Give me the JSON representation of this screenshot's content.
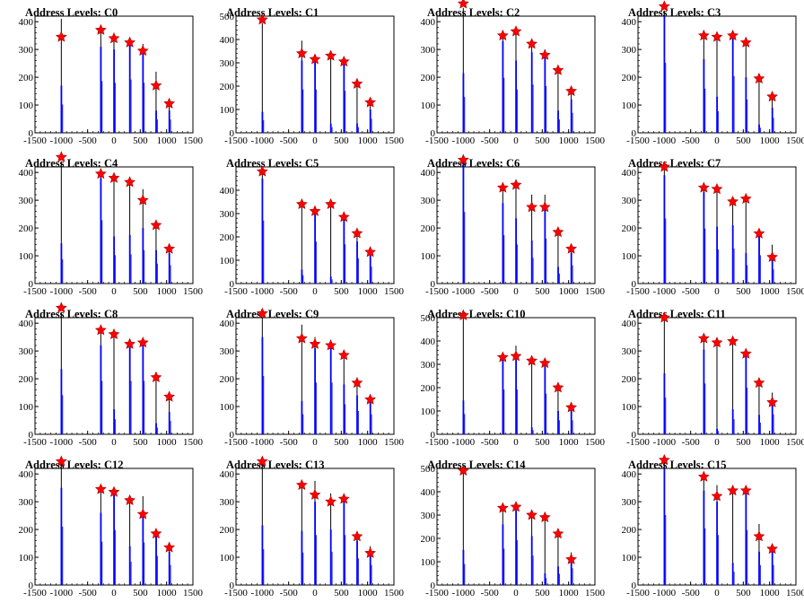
{
  "figure": {
    "background": "#ffffff",
    "bar_color": "#0000ff",
    "outline_color": "#000000",
    "marker_fill": "#ff0000",
    "marker_stroke": "#aa0000"
  },
  "chart_data": [
    {
      "type": "bar",
      "title": "Address Levels: C0",
      "xlim": [
        -1500,
        1500
      ],
      "ylim": [
        0,
        420
      ],
      "yticks": [
        0,
        100,
        200,
        300,
        400
      ],
      "xticks": [
        -1500,
        -1000,
        -500,
        0,
        500,
        1000,
        1500
      ],
      "peaks": [
        {
          "x": -1000,
          "bar": 410,
          "blue": 170,
          "marker": 345
        },
        {
          "x": -250,
          "bar": 360,
          "blue": 310,
          "marker": 370
        },
        {
          "x": 0,
          "bar": 360,
          "blue": 300,
          "marker": 340
        },
        {
          "x": 300,
          "bar": 340,
          "blue": 320,
          "marker": 325
        },
        {
          "x": 550,
          "bar": 320,
          "blue": 300,
          "marker": 295
        },
        {
          "x": 800,
          "bar": 220,
          "blue": 80,
          "marker": 170
        },
        {
          "x": 1050,
          "bar": 120,
          "blue": 80,
          "marker": 105
        }
      ]
    },
    {
      "type": "bar",
      "title": "Address Levels: C1",
      "xlim": [
        -1500,
        1500
      ],
      "ylim": [
        0,
        500
      ],
      "yticks": [
        0,
        100,
        200,
        300,
        400,
        500
      ],
      "xticks": [
        -1500,
        -1000,
        -500,
        0,
        500,
        1000,
        1500
      ],
      "peaks": [
        {
          "x": -1000,
          "bar": 470,
          "blue": 90,
          "marker": 485
        },
        {
          "x": -250,
          "bar": 395,
          "blue": 310,
          "marker": 340
        },
        {
          "x": 0,
          "bar": 335,
          "blue": 310,
          "marker": 315
        },
        {
          "x": 300,
          "bar": 340,
          "blue": 40,
          "marker": 330
        },
        {
          "x": 550,
          "bar": 310,
          "blue": 300,
          "marker": 305
        },
        {
          "x": 800,
          "bar": 205,
          "blue": 40,
          "marker": 210
        },
        {
          "x": 1050,
          "bar": 140,
          "blue": 100,
          "marker": 130
        }
      ]
    },
    {
      "type": "bar",
      "title": "Address Levels: C2",
      "xlim": [
        -1500,
        1500
      ],
      "ylim": [
        0,
        420
      ],
      "yticks": [
        0,
        100,
        200,
        300,
        400
      ],
      "xticks": [
        -1500,
        -1000,
        -500,
        0,
        500,
        1000,
        1500
      ],
      "peaks": [
        {
          "x": -1000,
          "bar": 450,
          "blue": 215,
          "marker": 465
        },
        {
          "x": -250,
          "bar": 355,
          "blue": 330,
          "marker": 350
        },
        {
          "x": 0,
          "bar": 360,
          "blue": 260,
          "marker": 365
        },
        {
          "x": 300,
          "bar": 320,
          "blue": 290,
          "marker": 320
        },
        {
          "x": 550,
          "bar": 300,
          "blue": 280,
          "marker": 280
        },
        {
          "x": 800,
          "bar": 220,
          "blue": 80,
          "marker": 225
        },
        {
          "x": 1050,
          "bar": 150,
          "blue": 120,
          "marker": 150
        }
      ]
    },
    {
      "type": "bar",
      "title": "Address Levels: C3",
      "xlim": [
        -1500,
        1500
      ],
      "ylim": [
        0,
        420
      ],
      "yticks": [
        0,
        100,
        200,
        300,
        400
      ],
      "xticks": [
        -1500,
        -1000,
        -500,
        0,
        500,
        1000,
        1500
      ],
      "peaks": [
        {
          "x": -1000,
          "bar": 440,
          "blue": 420,
          "marker": 455
        },
        {
          "x": -250,
          "bar": 350,
          "blue": 265,
          "marker": 350
        },
        {
          "x": 0,
          "bar": 360,
          "blue": 130,
          "marker": 345
        },
        {
          "x": 300,
          "bar": 350,
          "blue": 340,
          "marker": 350
        },
        {
          "x": 550,
          "bar": 320,
          "blue": 200,
          "marker": 325
        },
        {
          "x": 800,
          "bar": 210,
          "blue": 30,
          "marker": 195
        },
        {
          "x": 1050,
          "bar": 140,
          "blue": 90,
          "marker": 130
        }
      ]
    },
    {
      "type": "bar",
      "title": "Address Levels: C4",
      "xlim": [
        -1500,
        1500
      ],
      "ylim": [
        0,
        420
      ],
      "yticks": [
        0,
        100,
        200,
        300,
        400
      ],
      "xticks": [
        -1500,
        -1000,
        -500,
        0,
        500,
        1000,
        1500
      ],
      "peaks": [
        {
          "x": -1000,
          "bar": 440,
          "blue": 145,
          "marker": 455
        },
        {
          "x": -250,
          "bar": 390,
          "blue": 380,
          "marker": 395
        },
        {
          "x": 0,
          "bar": 385,
          "blue": 170,
          "marker": 380
        },
        {
          "x": 300,
          "bar": 370,
          "blue": 175,
          "marker": 365
        },
        {
          "x": 550,
          "bar": 340,
          "blue": 200,
          "marker": 300
        },
        {
          "x": 800,
          "bar": 220,
          "blue": 120,
          "marker": 210
        },
        {
          "x": 1050,
          "bar": 140,
          "blue": 110,
          "marker": 125
        }
      ]
    },
    {
      "type": "bar",
      "title": "Address Levels: C5",
      "xlim": [
        -1500,
        1500
      ],
      "ylim": [
        0,
        500
      ],
      "yticks": [
        0,
        100,
        200,
        300,
        400
      ],
      "xticks": [
        -1500,
        -1000,
        -500,
        0,
        500,
        1000,
        1500
      ],
      "peaks": [
        {
          "x": -1000,
          "bar": 470,
          "blue": 450,
          "marker": 480
        },
        {
          "x": -250,
          "bar": 340,
          "blue": 60,
          "marker": 340
        },
        {
          "x": 0,
          "bar": 320,
          "blue": 300,
          "marker": 310
        },
        {
          "x": 300,
          "bar": 350,
          "blue": 30,
          "marker": 340
        },
        {
          "x": 550,
          "bar": 300,
          "blue": 280,
          "marker": 285
        },
        {
          "x": 800,
          "bar": 220,
          "blue": 180,
          "marker": 215
        },
        {
          "x": 1050,
          "bar": 145,
          "blue": 120,
          "marker": 135
        }
      ]
    },
    {
      "type": "bar",
      "title": "Address Levels: C6",
      "xlim": [
        -1500,
        1500
      ],
      "ylim": [
        0,
        420
      ],
      "yticks": [
        0,
        100,
        200,
        300,
        400
      ],
      "xticks": [
        -1500,
        -1000,
        -500,
        0,
        500,
        1000,
        1500
      ],
      "peaks": [
        {
          "x": -1000,
          "bar": 440,
          "blue": 430,
          "marker": 445
        },
        {
          "x": -250,
          "bar": 340,
          "blue": 290,
          "marker": 345
        },
        {
          "x": 0,
          "bar": 355,
          "blue": 235,
          "marker": 355
        },
        {
          "x": 300,
          "bar": 320,
          "blue": 155,
          "marker": 275
        },
        {
          "x": 550,
          "bar": 320,
          "blue": 270,
          "marker": 275
        },
        {
          "x": 800,
          "bar": 200,
          "blue": 60,
          "marker": 185
        },
        {
          "x": 1050,
          "bar": 140,
          "blue": 110,
          "marker": 125
        }
      ]
    },
    {
      "type": "bar",
      "title": "Address Levels: C7",
      "xlim": [
        -1500,
        1500
      ],
      "ylim": [
        0,
        420
      ],
      "yticks": [
        0,
        100,
        200,
        300,
        400
      ],
      "xticks": [
        -1500,
        -1000,
        -500,
        0,
        500,
        1000,
        1500
      ],
      "peaks": [
        {
          "x": -1000,
          "bar": 410,
          "blue": 390,
          "marker": 420
        },
        {
          "x": -250,
          "bar": 345,
          "blue": 330,
          "marker": 345
        },
        {
          "x": 0,
          "bar": 345,
          "blue": 205,
          "marker": 340
        },
        {
          "x": 300,
          "bar": 300,
          "blue": 210,
          "marker": 295
        },
        {
          "x": 550,
          "bar": 310,
          "blue": 110,
          "marker": 305
        },
        {
          "x": 800,
          "bar": 185,
          "blue": 170,
          "marker": 180
        },
        {
          "x": 1050,
          "bar": 140,
          "blue": 85,
          "marker": 95
        }
      ]
    },
    {
      "type": "bar",
      "title": "Address Levels: C8",
      "xlim": [
        -1500,
        1500
      ],
      "ylim": [
        0,
        420
      ],
      "yticks": [
        0,
        100,
        200,
        300,
        400
      ],
      "xticks": [
        -1500,
        -1000,
        -500,
        0,
        500,
        1000,
        1500
      ],
      "peaks": [
        {
          "x": -1000,
          "bar": 440,
          "blue": 235,
          "marker": 455
        },
        {
          "x": -250,
          "bar": 380,
          "blue": 320,
          "marker": 375
        },
        {
          "x": 0,
          "bar": 360,
          "blue": 90,
          "marker": 360
        },
        {
          "x": 300,
          "bar": 330,
          "blue": 320,
          "marker": 325
        },
        {
          "x": 550,
          "bar": 335,
          "blue": 320,
          "marker": 330
        },
        {
          "x": 800,
          "bar": 210,
          "blue": 40,
          "marker": 205
        },
        {
          "x": 1050,
          "bar": 140,
          "blue": 80,
          "marker": 135
        }
      ]
    },
    {
      "type": "bar",
      "title": "Address Levels: C9",
      "xlim": [
        -1500,
        1500
      ],
      "ylim": [
        0,
        420
      ],
      "yticks": [
        0,
        100,
        200,
        300,
        400
      ],
      "xticks": [
        -1500,
        -1000,
        -500,
        0,
        500,
        1000,
        1500
      ],
      "peaks": [
        {
          "x": -1000,
          "bar": 420,
          "blue": 350,
          "marker": 435
        },
        {
          "x": -250,
          "bar": 395,
          "blue": 120,
          "marker": 345
        },
        {
          "x": 0,
          "bar": 350,
          "blue": 310,
          "marker": 325
        },
        {
          "x": 300,
          "bar": 340,
          "blue": 310,
          "marker": 320
        },
        {
          "x": 550,
          "bar": 300,
          "blue": 180,
          "marker": 285
        },
        {
          "x": 800,
          "bar": 200,
          "blue": 140,
          "marker": 185
        },
        {
          "x": 1050,
          "bar": 140,
          "blue": 120,
          "marker": 125
        }
      ]
    },
    {
      "type": "bar",
      "title": "Address Levels: C10",
      "xlim": [
        -1500,
        1500
      ],
      "ylim": [
        0,
        500
      ],
      "yticks": [
        0,
        100,
        200,
        300,
        400,
        500
      ],
      "xticks": [
        -1500,
        -1000,
        -500,
        0,
        500,
        1000,
        1500
      ],
      "peaks": [
        {
          "x": -1000,
          "bar": 510,
          "blue": 145,
          "marker": 510
        },
        {
          "x": -250,
          "bar": 350,
          "blue": 320,
          "marker": 330
        },
        {
          "x": 0,
          "bar": 380,
          "blue": 320,
          "marker": 335
        },
        {
          "x": 300,
          "bar": 330,
          "blue": 30,
          "marker": 315
        },
        {
          "x": 550,
          "bar": 315,
          "blue": 290,
          "marker": 305
        },
        {
          "x": 800,
          "bar": 210,
          "blue": 100,
          "marker": 200
        },
        {
          "x": 1050,
          "bar": 120,
          "blue": 100,
          "marker": 115
        }
      ]
    },
    {
      "type": "bar",
      "title": "Address Levels: C11",
      "xlim": [
        -1500,
        1500
      ],
      "ylim": [
        0,
        420
      ],
      "yticks": [
        0,
        100,
        200,
        300,
        400
      ],
      "xticks": [
        -1500,
        -1000,
        -500,
        0,
        500,
        1000,
        1500
      ],
      "peaks": [
        {
          "x": -1000,
          "bar": 410,
          "blue": 220,
          "marker": 420
        },
        {
          "x": -250,
          "bar": 350,
          "blue": 305,
          "marker": 345
        },
        {
          "x": 0,
          "bar": 340,
          "blue": 20,
          "marker": 330
        },
        {
          "x": 300,
          "bar": 340,
          "blue": 90,
          "marker": 335
        },
        {
          "x": 550,
          "bar": 300,
          "blue": 280,
          "marker": 290
        },
        {
          "x": 800,
          "bar": 195,
          "blue": 70,
          "marker": 185
        },
        {
          "x": 1050,
          "bar": 150,
          "blue": 120,
          "marker": 115
        }
      ]
    },
    {
      "type": "bar",
      "title": "Address Levels: C12",
      "xlim": [
        -1500,
        1500
      ],
      "ylim": [
        0,
        420
      ],
      "yticks": [
        0,
        100,
        200,
        300,
        400
      ],
      "xticks": [
        -1500,
        -1000,
        -500,
        0,
        500,
        1000,
        1500
      ],
      "peaks": [
        {
          "x": -1000,
          "bar": 440,
          "blue": 350,
          "marker": 445
        },
        {
          "x": -250,
          "bar": 350,
          "blue": 260,
          "marker": 345
        },
        {
          "x": 0,
          "bar": 345,
          "blue": 330,
          "marker": 335
        },
        {
          "x": 300,
          "bar": 320,
          "blue": 140,
          "marker": 305
        },
        {
          "x": 550,
          "bar": 320,
          "blue": 255,
          "marker": 255
        },
        {
          "x": 800,
          "bar": 190,
          "blue": 175,
          "marker": 185
        },
        {
          "x": 1050,
          "bar": 140,
          "blue": 120,
          "marker": 135
        }
      ]
    },
    {
      "type": "bar",
      "title": "Address Levels: C13",
      "xlim": [
        -1500,
        1500
      ],
      "ylim": [
        0,
        420
      ],
      "yticks": [
        0,
        100,
        200,
        300,
        400
      ],
      "xticks": [
        -1500,
        -1000,
        -500,
        0,
        500,
        1000,
        1500
      ],
      "peaks": [
        {
          "x": -1000,
          "bar": 450,
          "blue": 215,
          "marker": 445
        },
        {
          "x": -250,
          "bar": 360,
          "blue": 195,
          "marker": 360
        },
        {
          "x": 0,
          "bar": 375,
          "blue": 300,
          "marker": 325
        },
        {
          "x": 300,
          "bar": 330,
          "blue": 200,
          "marker": 300
        },
        {
          "x": 550,
          "bar": 315,
          "blue": 300,
          "marker": 310
        },
        {
          "x": 800,
          "bar": 190,
          "blue": 160,
          "marker": 175
        },
        {
          "x": 1050,
          "bar": 140,
          "blue": 120,
          "marker": 115
        }
      ]
    },
    {
      "type": "bar",
      "title": "Address Levels: C14",
      "xlim": [
        -1500,
        1500
      ],
      "ylim": [
        0,
        500
      ],
      "yticks": [
        0,
        100,
        200,
        300,
        400,
        500
      ],
      "xticks": [
        -1500,
        -1000,
        -500,
        0,
        500,
        1000,
        1500
      ],
      "peaks": [
        {
          "x": -1000,
          "bar": 490,
          "blue": 150,
          "marker": 490
        },
        {
          "x": -250,
          "bar": 340,
          "blue": 260,
          "marker": 330
        },
        {
          "x": 0,
          "bar": 340,
          "blue": 320,
          "marker": 335
        },
        {
          "x": 300,
          "bar": 310,
          "blue": 210,
          "marker": 300
        },
        {
          "x": 550,
          "bar": 300,
          "blue": 50,
          "marker": 290
        },
        {
          "x": 800,
          "bar": 210,
          "blue": 80,
          "marker": 220
        },
        {
          "x": 1050,
          "bar": 140,
          "blue": 120,
          "marker": 110
        }
      ]
    },
    {
      "type": "bar",
      "title": "Address Levels: C15",
      "xlim": [
        -1500,
        1500
      ],
      "ylim": [
        0,
        420
      ],
      "yticks": [
        0,
        100,
        200,
        300,
        400
      ],
      "xticks": [
        -1500,
        -1000,
        -500,
        0,
        500,
        1000,
        1500
      ],
      "peaks": [
        {
          "x": -1000,
          "bar": 440,
          "blue": 420,
          "marker": 450
        },
        {
          "x": -250,
          "bar": 385,
          "blue": 340,
          "marker": 390
        },
        {
          "x": 0,
          "bar": 360,
          "blue": 300,
          "marker": 320
        },
        {
          "x": 300,
          "bar": 330,
          "blue": 80,
          "marker": 340
        },
        {
          "x": 550,
          "bar": 345,
          "blue": 330,
          "marker": 340
        },
        {
          "x": 800,
          "bar": 220,
          "blue": 120,
          "marker": 175
        },
        {
          "x": 1050,
          "bar": 140,
          "blue": 120,
          "marker": 130
        }
      ]
    }
  ]
}
